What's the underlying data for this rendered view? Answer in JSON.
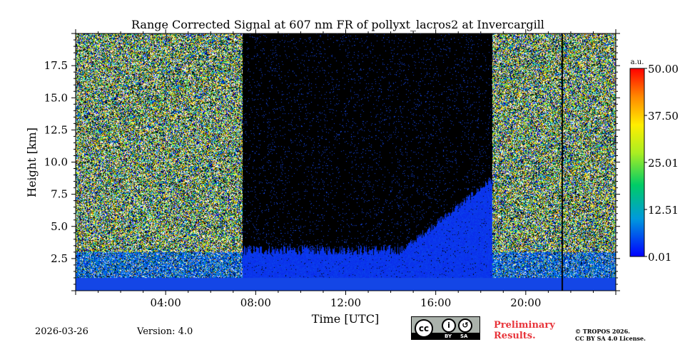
{
  "chart_data": {
    "type": "heatmap",
    "title": "Range Corrected Signal at 607 nm FR of pollyxt_lacros2 at Invercargill",
    "xlabel": "Time [UTC]",
    "ylabel": "Height [km]",
    "x_range_hours": [
      0,
      24
    ],
    "y_range_km": [
      0,
      20
    ],
    "x_ticks": [
      {
        "hour": 4,
        "label": "04:00"
      },
      {
        "hour": 8,
        "label": "08:00"
      },
      {
        "hour": 12,
        "label": "12:00"
      },
      {
        "hour": 16,
        "label": "16:00"
      },
      {
        "hour": 20,
        "label": "20:00"
      }
    ],
    "y_ticks": [
      {
        "km": 2.5,
        "label": "2.5"
      },
      {
        "km": 5.0,
        "label": "5.0"
      },
      {
        "km": 7.5,
        "label": "7.5"
      },
      {
        "km": 10.0,
        "label": "10.0"
      },
      {
        "km": 12.5,
        "label": "12.5"
      },
      {
        "km": 15.0,
        "label": "15.0"
      },
      {
        "km": 17.5,
        "label": "17.5"
      }
    ],
    "colorbar": {
      "unit": "a.u.",
      "min": 0.01,
      "max": 50.0,
      "ticks": [
        {
          "value": 0.01,
          "label": "0.01"
        },
        {
          "value": 12.51,
          "label": "12.51"
        },
        {
          "value": 25.01,
          "label": "25.01"
        },
        {
          "value": 37.5,
          "label": "37.50"
        },
        {
          "value": 50.0,
          "label": "50.00"
        }
      ]
    },
    "regions": {
      "night_noise_end_hour": 7.2,
      "daylight_start_hour": 7.4,
      "daylight_end_hour": 18.5,
      "evening_noise_start_hour": 18.8,
      "data_gap_hour": 21.6,
      "boundary_layer_top_km": 3.2,
      "afternoon_layer_top_km": 8.5
    }
  },
  "footer": {
    "date": "2026-03-26",
    "version": "Version: 4.0",
    "preliminary": "Preliminary Results.",
    "copyright_line1": "© TROPOS 2026.",
    "copyright_line2": "CC BY SA 4.0 License.",
    "license_badge": {
      "by": "BY",
      "sa": "SA",
      "cc": "cc"
    }
  },
  "colors": {
    "background": "#ffffff",
    "no_data": "#000000",
    "prelim_text": "#e8353b"
  }
}
